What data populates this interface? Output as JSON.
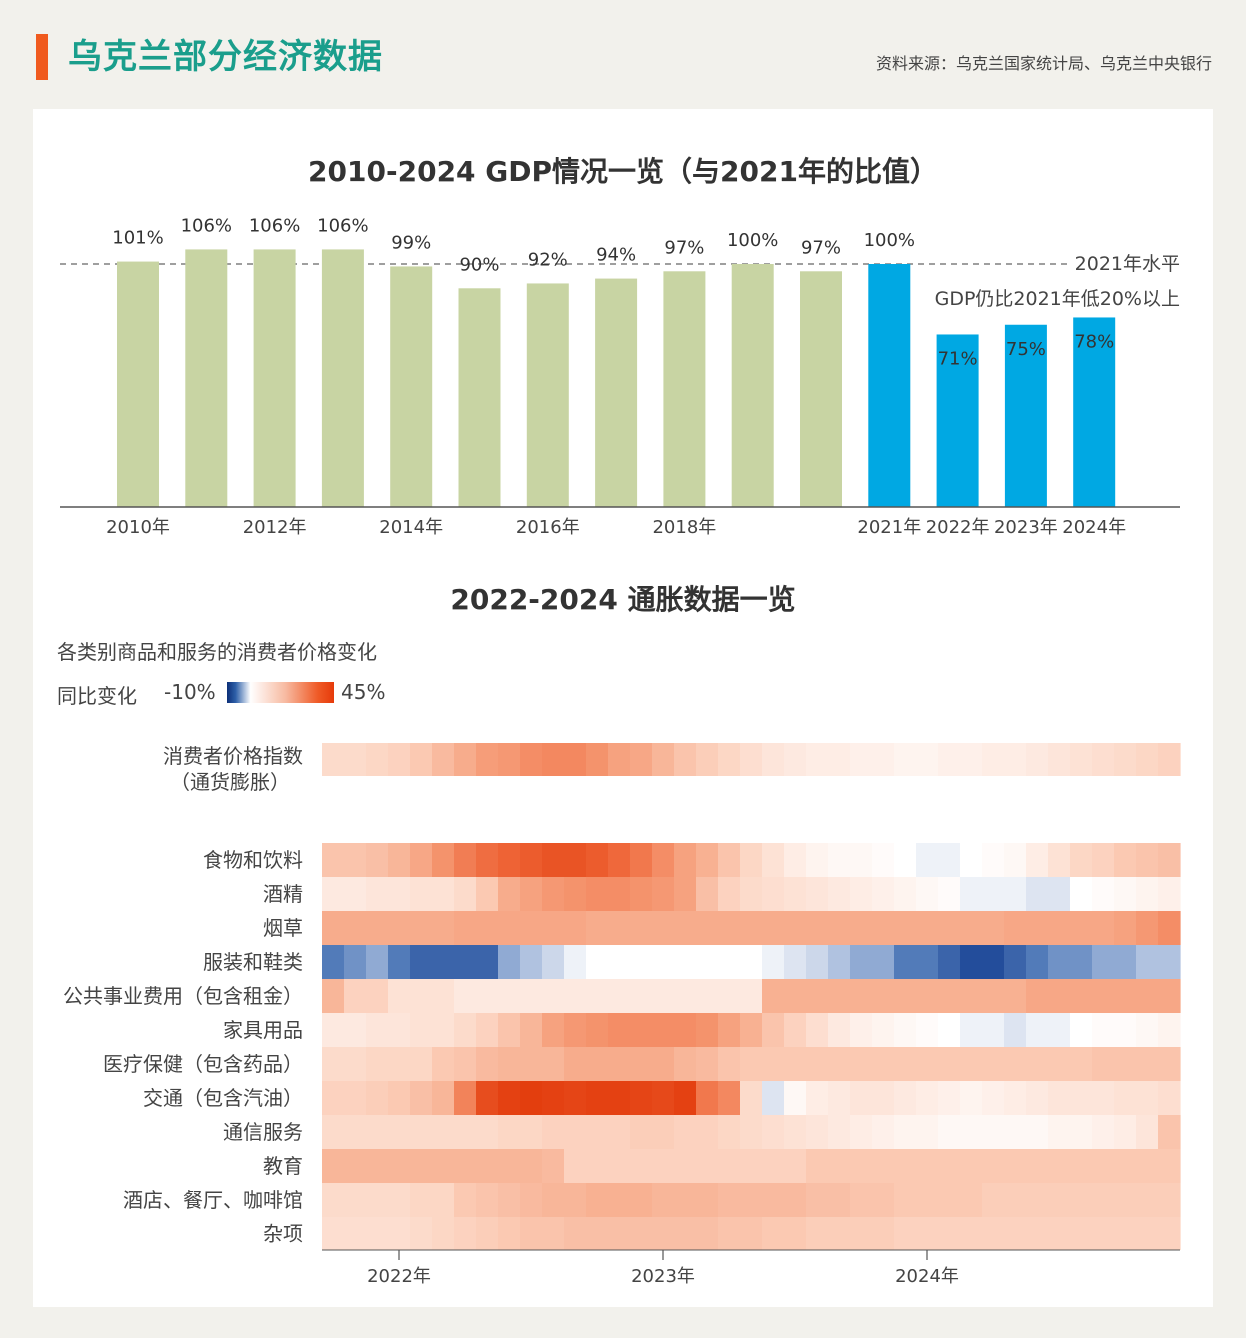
{
  "header": {
    "title": "乌克兰部分经济数据",
    "source": "资料来源：乌克兰国家统计局、乌克兰中央银行"
  },
  "colors": {
    "accent": "#f05a1e",
    "title": "#1a9e8c",
    "bar_pre": "#c8d4a3",
    "bar_post": "#00a8e3"
  },
  "gdp": {
    "title": "2010-2024 GDP情况一览（与2021年的比值）",
    "reference_label": "2021年水平",
    "annotation": "GDP仍比2021年低20%以上"
  },
  "inflation": {
    "title": "2022-2024 通胀数据一览",
    "subtitle": "各类别商品和服务的消费者价格变化",
    "legend_label": "同比变化",
    "legend_min": "-10%",
    "legend_max": "45%"
  },
  "chart_data": [
    {
      "type": "bar",
      "title": "2010-2024 GDP情况一览（与2021年的比值）",
      "categories": [
        "2010",
        "2011",
        "2012",
        "2013",
        "2014",
        "2015",
        "2016",
        "2017",
        "2018",
        "2019",
        "2020",
        "2021",
        "2022",
        "2023",
        "2024"
      ],
      "tick_labels": [
        "2010年",
        "",
        "2012年",
        "",
        "2014年",
        "",
        "2016年",
        "",
        "2018年",
        "",
        "",
        "2021年",
        "2022年",
        "2023年",
        "2024年"
      ],
      "values": [
        101,
        106,
        106,
        106,
        99,
        90,
        92,
        94,
        97,
        100,
        97,
        100,
        71,
        75,
        78
      ],
      "value_labels": [
        "101%",
        "106%",
        "106%",
        "106%",
        "99%",
        "90%",
        "92%",
        "94%",
        "97%",
        "100%",
        "97%",
        "100%",
        "71%",
        "75%",
        "78%"
      ],
      "reference_line": 100,
      "ylim": [
        0,
        110
      ],
      "highlight_from": "2021"
    },
    {
      "type": "heatmap",
      "title": "2022-2024 通胀数据一览",
      "subtitle": "各类别商品和服务的消费者价格变化",
      "color_range": [
        -10,
        45
      ],
      "x_start": "2022-01",
      "months": 39,
      "x_ticks": [
        "2022年",
        "2023年",
        "2024年"
      ],
      "rows": [
        {
          "label": "消费者价格指数（通货膨胀）",
          "values": [
            10,
            10,
            11,
            12,
            14,
            17,
            20,
            23,
            24,
            26,
            27,
            27,
            25,
            22,
            21,
            18,
            15,
            13,
            11,
            9,
            7,
            6,
            5,
            5,
            4,
            4,
            3,
            3,
            4,
            4,
            5,
            5,
            6,
            7,
            8,
            9,
            10,
            11,
            12
          ]
        },
        {
          "label": "食物和饮料",
          "values": [
            15,
            15,
            16,
            18,
            21,
            25,
            29,
            32,
            34,
            36,
            38,
            38,
            36,
            33,
            30,
            26,
            22,
            19,
            15,
            11,
            8,
            5,
            3,
            2,
            2,
            1,
            0,
            -1,
            -1,
            0,
            1,
            2,
            5,
            8,
            11,
            12,
            14,
            15,
            16
          ]
        },
        {
          "label": "酒精",
          "values": [
            6,
            6,
            7,
            7,
            8,
            8,
            10,
            14,
            20,
            22,
            24,
            25,
            26,
            26,
            25,
            24,
            22,
            16,
            12,
            10,
            9,
            8,
            7,
            6,
            5,
            4,
            3,
            2,
            1,
            -1,
            -1,
            -1,
            -2,
            -2,
            0,
            1,
            2,
            3,
            4
          ]
        },
        {
          "label": "烟草",
          "values": [
            20,
            20,
            20,
            20,
            20,
            20,
            21,
            21,
            21,
            21,
            21,
            21,
            20,
            20,
            20,
            20,
            20,
            20,
            20,
            20,
            20,
            20,
            20,
            20,
            20,
            20,
            20,
            20,
            20,
            20,
            20,
            21,
            21,
            21,
            21,
            21,
            22,
            24,
            26
          ]
        },
        {
          "label": "服装和鞋类",
          "values": [
            -7,
            -6,
            -5,
            -7,
            -8,
            -8,
            -8,
            -8,
            -5,
            -4,
            -3,
            -1,
            0,
            0,
            0,
            0,
            0,
            0,
            0,
            0,
            -1,
            -2,
            -3,
            -4,
            -5,
            -5,
            -7,
            -7,
            -8,
            -9,
            -9,
            -8,
            -7,
            -6,
            -6,
            -5,
            -5,
            -4,
            -4
          ]
        },
        {
          "label": "公共事业费用（包含租金）",
          "values": [
            18,
            12,
            12,
            8,
            8,
            8,
            6,
            6,
            6,
            6,
            6,
            6,
            6,
            6,
            6,
            6,
            6,
            6,
            6,
            6,
            19,
            19,
            19,
            19,
            19,
            19,
            19,
            19,
            19,
            19,
            19,
            19,
            21,
            21,
            21,
            21,
            21,
            21,
            21
          ]
        },
        {
          "label": "家具用品",
          "values": [
            6,
            6,
            7,
            7,
            8,
            8,
            10,
            12,
            15,
            18,
            22,
            24,
            25,
            26,
            26,
            26,
            26,
            25,
            22,
            19,
            15,
            12,
            9,
            6,
            4,
            3,
            2,
            1,
            0,
            -1,
            -1,
            -2,
            -1,
            -1,
            0,
            1,
            1,
            2,
            3
          ]
        },
        {
          "label": "医疗保健（包含药品）",
          "values": [
            10,
            10,
            11,
            11,
            11,
            14,
            15,
            17,
            18,
            18,
            18,
            20,
            20,
            20,
            20,
            20,
            18,
            17,
            15,
            14,
            14,
            14,
            14,
            14,
            14,
            14,
            14,
            14,
            14,
            14,
            14,
            14,
            14,
            14,
            14,
            15,
            15,
            15,
            15
          ]
        },
        {
          "label": "交通（包含汽油）",
          "values": [
            12,
            12,
            13,
            14,
            16,
            18,
            28,
            40,
            43,
            44,
            43,
            42,
            43,
            43,
            42,
            41,
            43,
            30,
            27,
            10,
            -2,
            2,
            5,
            6,
            7,
            7,
            6,
            5,
            4,
            3,
            4,
            5,
            6,
            7,
            7,
            7,
            8,
            8,
            9
          ]
        },
        {
          "label": "通信服务",
          "values": [
            10,
            10,
            10,
            10,
            10,
            10,
            10,
            10,
            11,
            11,
            12,
            12,
            12,
            12,
            13,
            13,
            12,
            12,
            11,
            10,
            9,
            8,
            7,
            6,
            5,
            4,
            3,
            3,
            2,
            2,
            2,
            2,
            2,
            3,
            3,
            4,
            5,
            7,
            15
          ]
        },
        {
          "label": "教育",
          "values": [
            18,
            18,
            18,
            18,
            18,
            18,
            18,
            18,
            18,
            18,
            17,
            12,
            12,
            12,
            12,
            12,
            12,
            12,
            12,
            12,
            12,
            12,
            14,
            14,
            14,
            14,
            14,
            14,
            14,
            14,
            14,
            14,
            14,
            14,
            14,
            14,
            14,
            14,
            14
          ]
        },
        {
          "label": "酒店、餐厅、咖啡馆",
          "values": [
            10,
            10,
            10,
            10,
            11,
            11,
            14,
            15,
            16,
            17,
            18,
            18,
            19,
            19,
            19,
            18,
            18,
            18,
            17,
            17,
            17,
            17,
            16,
            16,
            15,
            15,
            14,
            14,
            14,
            14,
            13,
            13,
            13,
            13,
            13,
            13,
            13,
            13,
            13
          ]
        },
        {
          "label": "杂项",
          "values": [
            9,
            9,
            9,
            9,
            10,
            11,
            12,
            13,
            14,
            15,
            15,
            16,
            16,
            16,
            16,
            16,
            16,
            16,
            15,
            15,
            14,
            14,
            13,
            13,
            13,
            13,
            12,
            12,
            12,
            12,
            12,
            12,
            12,
            12,
            12,
            12,
            12,
            12,
            12
          ]
        }
      ]
    }
  ]
}
